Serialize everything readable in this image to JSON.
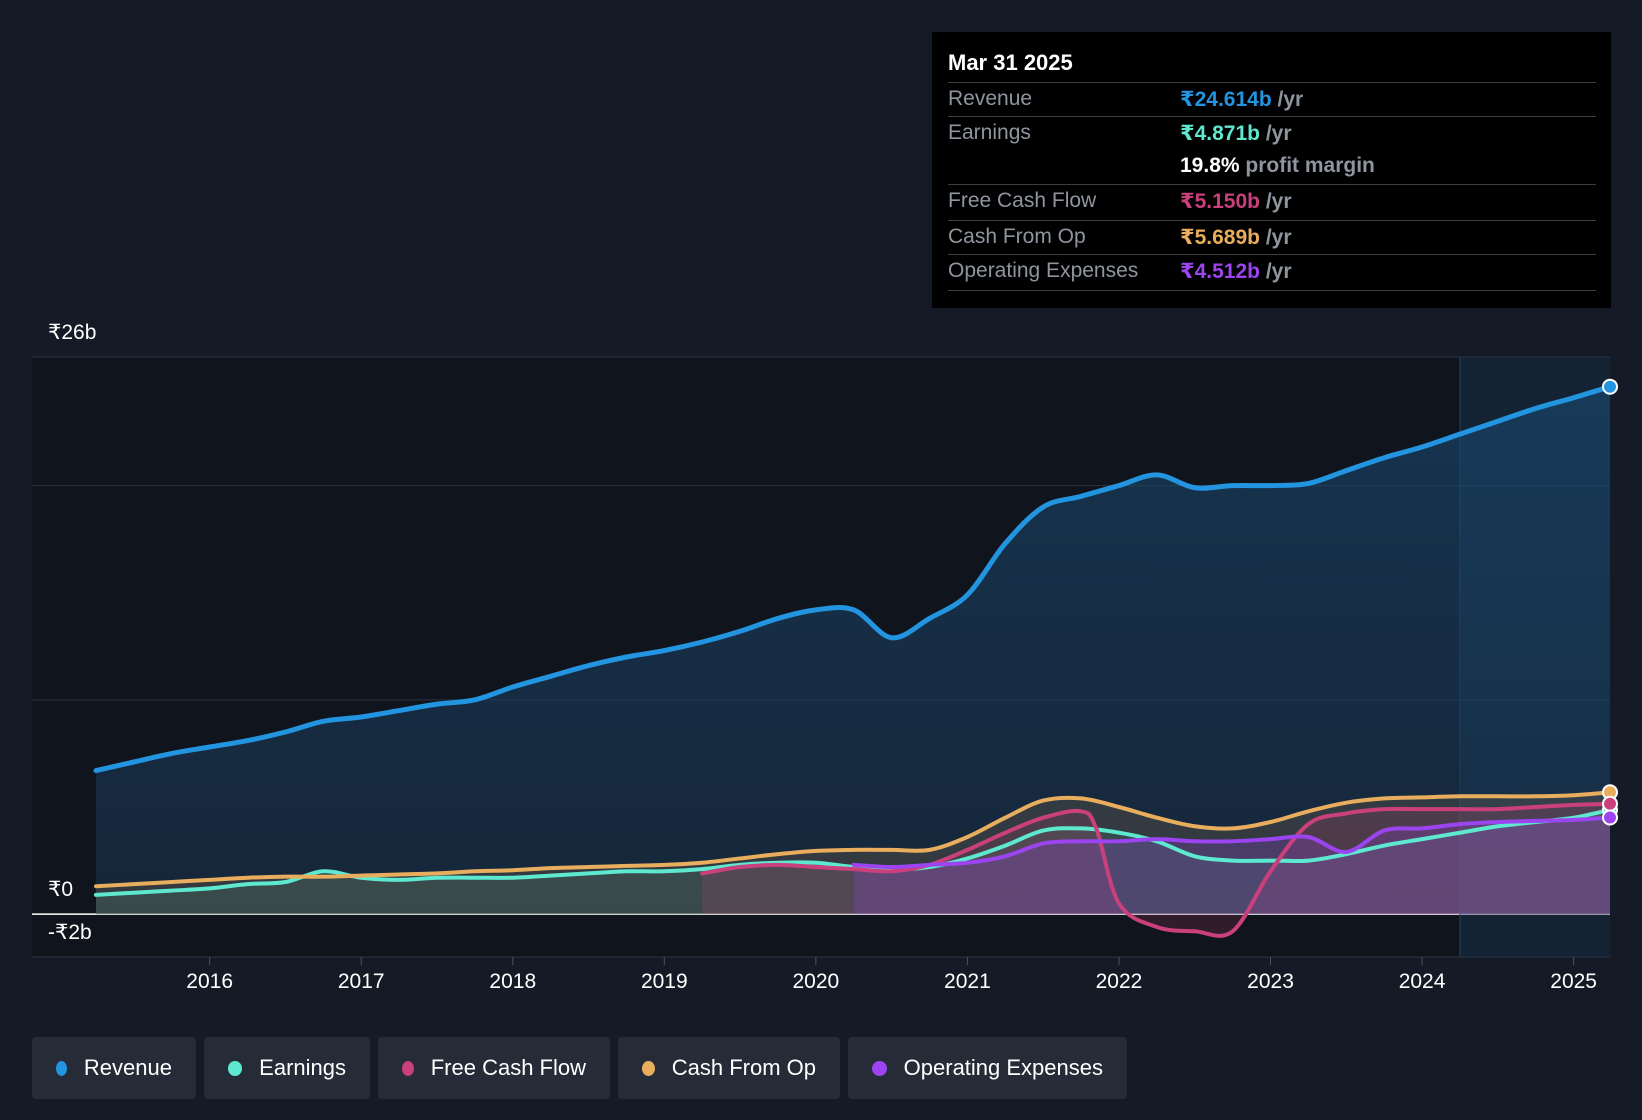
{
  "colors": {
    "background": "#151b26",
    "revenue": "#2394df",
    "earnings": "#5ee8cf",
    "free_cash_flow": "#c9407c",
    "cash_from_op": "#e9ad5e",
    "operating_expenses": "#9b44f0"
  },
  "tooltip": {
    "date": "Mar 31 2025",
    "rows": [
      {
        "label": "Revenue",
        "value": "₹24.614b",
        "unit": "/yr"
      },
      {
        "label": "Earnings",
        "value": "₹4.871b",
        "unit": "/yr"
      },
      {
        "label": "",
        "value": "19.8%",
        "unit": "profit margin"
      },
      {
        "label": "Free Cash Flow",
        "value": "₹5.150b",
        "unit": "/yr"
      },
      {
        "label": "Cash From Op",
        "value": "₹5.689b",
        "unit": "/yr"
      },
      {
        "label": "Operating Expenses",
        "value": "₹4.512b",
        "unit": "/yr"
      }
    ]
  },
  "legend": [
    {
      "label": "Revenue",
      "icon": "revenue-dot-icon"
    },
    {
      "label": "Earnings",
      "icon": "earnings-dot-icon"
    },
    {
      "label": "Free Cash Flow",
      "icon": "free-cash-flow-dot-icon"
    },
    {
      "label": "Cash From Op",
      "icon": "cash-from-op-dot-icon"
    },
    {
      "label": "Operating Expenses",
      "icon": "operating-expenses-dot-icon"
    }
  ],
  "chart_data": {
    "type": "line",
    "title": "",
    "xlabel": "",
    "ylabel": "",
    "y_ticks": [
      "₹26b",
      "₹0",
      "-₹2b"
    ],
    "x_ticks": [
      "2016",
      "2017",
      "2018",
      "2019",
      "2020",
      "2021",
      "2022",
      "2023",
      "2024",
      "2025"
    ],
    "x_tick_values": [
      2016,
      2017,
      2018,
      2019,
      2020,
      2021,
      2022,
      2023,
      2024,
      2025
    ],
    "xlim": [
      2015.25,
      2025.24
    ],
    "ylim": [
      -2,
      26
    ],
    "highlight_range": [
      2024.25,
      2025.24
    ],
    "series": [
      {
        "name": "Revenue",
        "key": "revenue",
        "x": [
          2015.25,
          2015.5,
          2015.75,
          2016,
          2016.25,
          2016.5,
          2016.75,
          2017,
          2017.25,
          2017.5,
          2017.75,
          2018,
          2018.25,
          2018.5,
          2018.75,
          2019,
          2019.25,
          2019.5,
          2019.75,
          2020,
          2020.25,
          2020.5,
          2020.75,
          2021,
          2021.25,
          2021.5,
          2021.75,
          2022,
          2022.25,
          2022.5,
          2022.75,
          2023,
          2023.25,
          2023.5,
          2023.75,
          2024,
          2024.25,
          2024.5,
          2024.75,
          2025,
          2025.24
        ],
        "y": [
          6.7,
          7.1,
          7.5,
          7.8,
          8.1,
          8.5,
          9.0,
          9.2,
          9.5,
          9.8,
          10.0,
          10.6,
          11.1,
          11.6,
          12.0,
          12.3,
          12.7,
          13.2,
          13.8,
          14.2,
          14.2,
          12.9,
          13.8,
          14.9,
          17.3,
          19.0,
          19.5,
          20.0,
          20.5,
          19.9,
          20.0,
          20.0,
          20.1,
          20.7,
          21.3,
          21.8,
          22.4,
          23.0,
          23.6,
          24.1,
          24.614
        ]
      },
      {
        "name": "Earnings",
        "key": "earnings",
        "x": [
          2015.25,
          2015.5,
          2015.75,
          2016,
          2016.25,
          2016.5,
          2016.75,
          2017,
          2017.25,
          2017.5,
          2017.75,
          2018,
          2018.25,
          2018.5,
          2018.75,
          2019,
          2019.25,
          2019.5,
          2019.75,
          2020,
          2020.25,
          2020.5,
          2020.75,
          2021,
          2021.25,
          2021.5,
          2021.75,
          2022,
          2022.25,
          2022.5,
          2022.75,
          2023,
          2023.25,
          2023.5,
          2023.75,
          2024,
          2024.25,
          2024.5,
          2024.75,
          2025,
          2025.24
        ],
        "y": [
          0.9,
          1.0,
          1.1,
          1.2,
          1.4,
          1.5,
          2.0,
          1.7,
          1.6,
          1.7,
          1.7,
          1.7,
          1.8,
          1.9,
          2.0,
          2.0,
          2.1,
          2.3,
          2.4,
          2.4,
          2.2,
          2.1,
          2.2,
          2.6,
          3.2,
          3.9,
          4.0,
          3.8,
          3.4,
          2.7,
          2.5,
          2.5,
          2.5,
          2.8,
          3.2,
          3.5,
          3.8,
          4.1,
          4.3,
          4.5,
          4.871
        ]
      },
      {
        "name": "Free Cash Flow",
        "key": "free_cash_flow",
        "x": [
          2019.25,
          2019.5,
          2019.75,
          2020,
          2020.25,
          2020.5,
          2020.75,
          2021,
          2021.25,
          2021.5,
          2021.75,
          2021.85,
          2022,
          2022.25,
          2022.5,
          2022.75,
          2023,
          2023.25,
          2023.5,
          2023.75,
          2024,
          2024.25,
          2024.5,
          2024.75,
          2025,
          2025.24
        ],
        "y": [
          1.9,
          2.2,
          2.3,
          2.2,
          2.1,
          2.0,
          2.3,
          3.0,
          3.8,
          4.5,
          4.8,
          4.0,
          0.5,
          -0.6,
          -0.8,
          -0.8,
          2.0,
          4.2,
          4.7,
          4.9,
          4.9,
          4.9,
          4.9,
          5.0,
          5.1,
          5.15
        ]
      },
      {
        "name": "Cash From Op",
        "key": "cash_from_op",
        "x": [
          2015.25,
          2015.5,
          2015.75,
          2016,
          2016.25,
          2016.5,
          2016.75,
          2017,
          2017.25,
          2017.5,
          2017.75,
          2018,
          2018.25,
          2018.5,
          2018.75,
          2019,
          2019.25,
          2019.5,
          2019.75,
          2020,
          2020.25,
          2020.5,
          2020.75,
          2021,
          2021.25,
          2021.5,
          2021.75,
          2022,
          2022.25,
          2022.5,
          2022.75,
          2023,
          2023.25,
          2023.5,
          2023.75,
          2024,
          2024.25,
          2024.5,
          2024.75,
          2025,
          2025.24
        ],
        "y": [
          1.3,
          1.4,
          1.5,
          1.6,
          1.7,
          1.75,
          1.75,
          1.8,
          1.85,
          1.9,
          2.0,
          2.05,
          2.15,
          2.2,
          2.25,
          2.3,
          2.4,
          2.6,
          2.8,
          2.95,
          3.0,
          3.0,
          3.0,
          3.6,
          4.5,
          5.3,
          5.4,
          5.0,
          4.5,
          4.1,
          4.0,
          4.3,
          4.8,
          5.2,
          5.4,
          5.45,
          5.5,
          5.5,
          5.5,
          5.55,
          5.689
        ]
      },
      {
        "name": "Operating Expenses",
        "key": "operating_expenses",
        "x": [
          2020.25,
          2020.5,
          2020.75,
          2021,
          2021.25,
          2021.5,
          2021.75,
          2022,
          2022.25,
          2022.5,
          2022.75,
          2023,
          2023.25,
          2023.5,
          2023.75,
          2024,
          2024.25,
          2024.5,
          2024.75,
          2025,
          2025.24
        ],
        "y": [
          2.3,
          2.2,
          2.3,
          2.4,
          2.7,
          3.3,
          3.4,
          3.4,
          3.5,
          3.4,
          3.4,
          3.5,
          3.6,
          2.9,
          3.9,
          4.0,
          4.2,
          4.3,
          4.35,
          4.4,
          4.512
        ]
      }
    ]
  }
}
